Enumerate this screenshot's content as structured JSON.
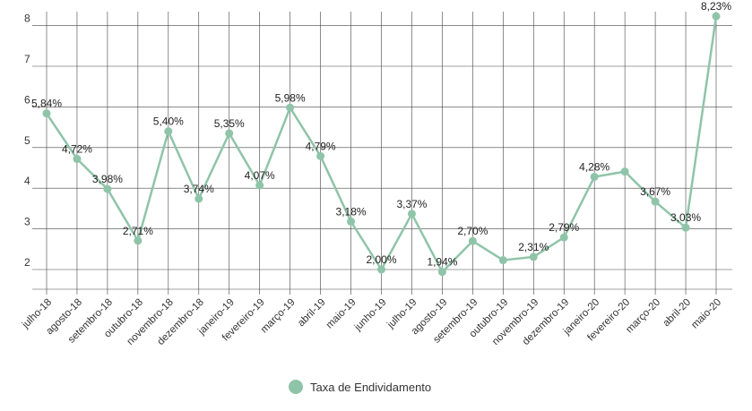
{
  "chart_data": {
    "type": "line",
    "title": "",
    "xlabel": "",
    "ylabel": "",
    "ylim": [
      1.5,
      8.6
    ],
    "yticks": [
      2,
      3,
      4,
      5,
      6,
      7,
      8
    ],
    "grid": true,
    "legend_position": "bottom",
    "categories": [
      "julho-18",
      "agosto-18",
      "setembro-18",
      "outubro-18",
      "novembro-18",
      "dezembro-18",
      "janeiro-19",
      "fevereiro-19",
      "março-19",
      "abril-19",
      "maio-19",
      "junho-19",
      "julho-19",
      "agosto-19",
      "setembro-19",
      "outubro-19",
      "novembro-19",
      "dezembro-19",
      "janeiro-20",
      "fevereiro-20",
      "março-20",
      "abril-20",
      "maio-20"
    ],
    "series": [
      {
        "name": "Taxa de Endividamento",
        "color": "#8fc4a8",
        "values": [
          5.84,
          4.72,
          3.98,
          2.71,
          5.4,
          3.74,
          5.35,
          4.07,
          5.98,
          4.79,
          3.18,
          2.0,
          3.37,
          1.94,
          2.7,
          2.23,
          2.31,
          2.79,
          4.28,
          4.41,
          3.67,
          3.03,
          8.23
        ],
        "labels": [
          "5,84%",
          "4,72%",
          "3,98%",
          "2,71%",
          "5,40%",
          "3,74%",
          "5,35%",
          "4,07%",
          "5,98%",
          "4,79%",
          "3,18%",
          "2,00%",
          "3,37%",
          "1,94%",
          "2,70%",
          "",
          "2,31%",
          "2,79%",
          "4,28%",
          "",
          "3,67%",
          "3,03%",
          "8,23%"
        ]
      }
    ]
  }
}
